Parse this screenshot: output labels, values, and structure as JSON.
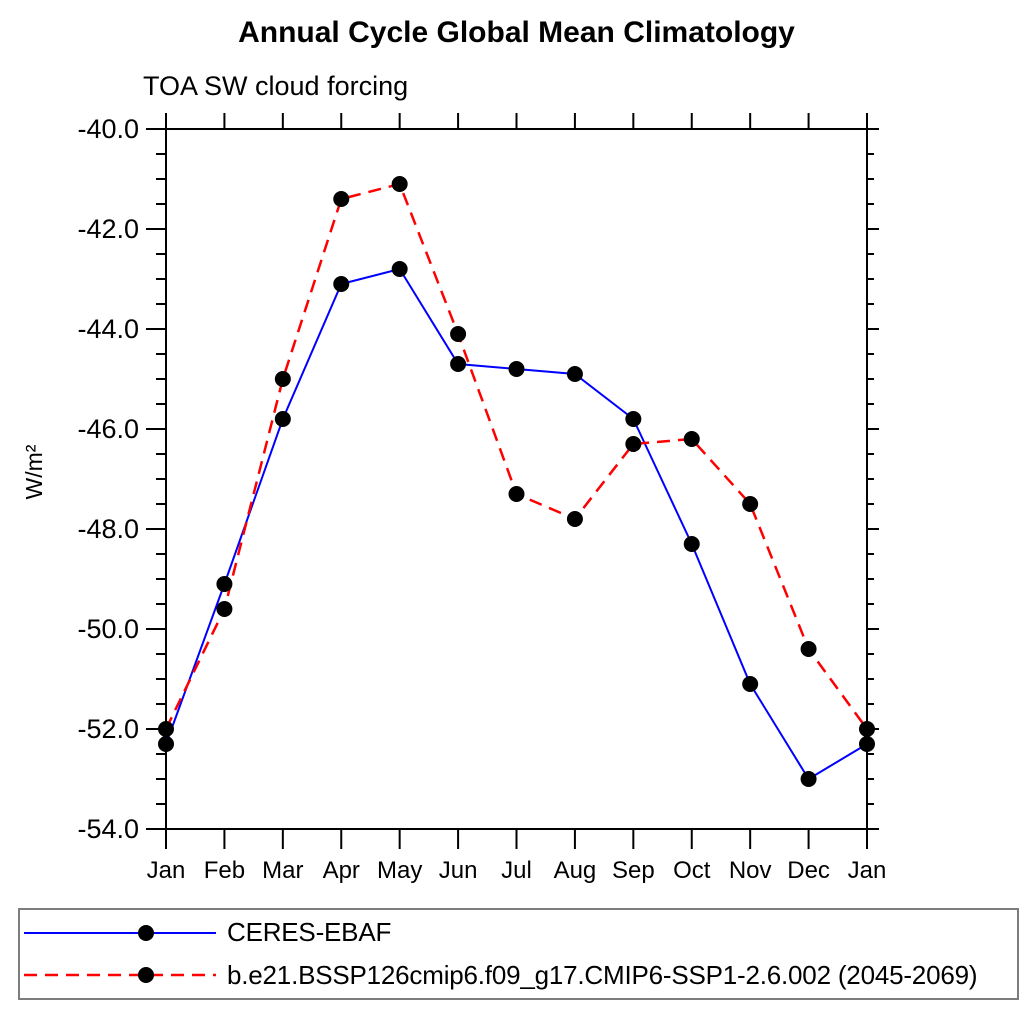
{
  "chart_data": {
    "type": "line",
    "title": "Annual Cycle Global Mean Climatology",
    "subtitle": "TOA SW cloud forcing",
    "ylabel": "W/m²",
    "xlabel": "",
    "categories": [
      "Jan",
      "Feb",
      "Mar",
      "Apr",
      "May",
      "Jun",
      "Jul",
      "Aug",
      "Sep",
      "Oct",
      "Nov",
      "Dec",
      "Jan"
    ],
    "ylim": [
      -54.0,
      -40.0
    ],
    "y_tick_values": [
      -40,
      -42,
      -44,
      -46,
      -48,
      -50,
      -52,
      -54
    ],
    "y_tick_labels": [
      "-40.0",
      "-42.0",
      "-44.0",
      "-46.0",
      "-48.0",
      "-50.0",
      "-52.0",
      "-54.0"
    ],
    "y_minor_step": 0.5,
    "grid": false,
    "legend_position": "bottom",
    "axis_color": "#000000",
    "marker": {
      "shape": "circle",
      "color": "#000000"
    },
    "series": [
      {
        "name": "CERES-EBAF",
        "color": "#0000ff",
        "line_style": "solid",
        "values": [
          -52.3,
          -49.1,
          -45.8,
          -43.1,
          -42.8,
          -44.7,
          -44.8,
          -44.9,
          -45.8,
          -48.3,
          -51.1,
          -53.0,
          -52.3
        ]
      },
      {
        "name": "b.e21.BSSP126cmip6.f09_g17.CMIP6-SSP1-2.6.002 (2045-2069)",
        "color": "#ff0000",
        "line_style": "dashed",
        "values": [
          -52.0,
          -49.6,
          -45.0,
          -41.4,
          -41.1,
          -44.1,
          -47.3,
          -47.8,
          -46.3,
          -46.2,
          -47.5,
          -50.4,
          -52.0
        ]
      }
    ]
  }
}
